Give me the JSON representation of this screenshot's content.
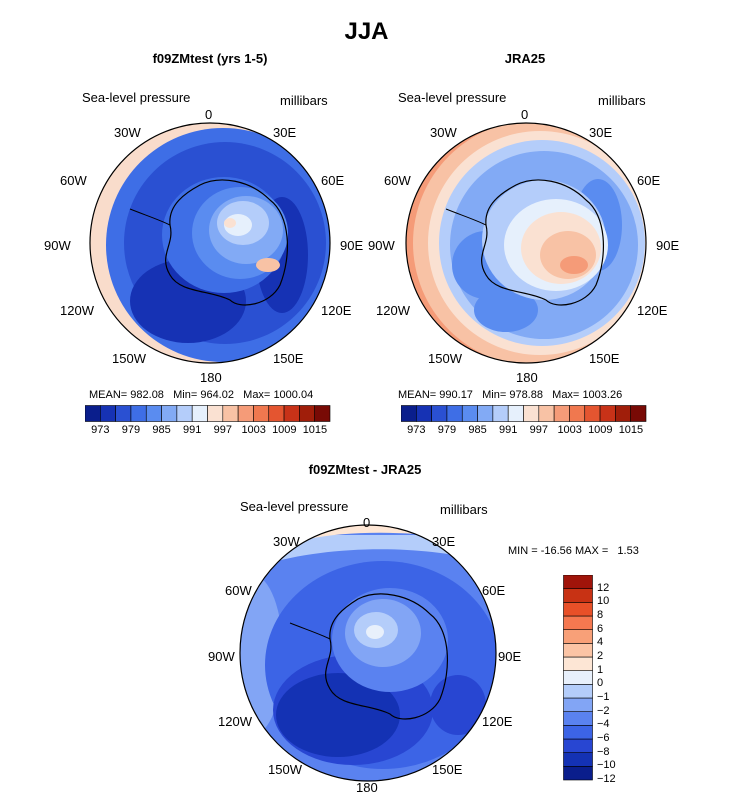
{
  "title": "JJA",
  "panels": [
    {
      "title": "f09ZMtest (yrs 1-5)",
      "field": "Sea-level pressure",
      "units": "millibars",
      "stats": {
        "mean_label": "MEAN=",
        "mean": "982.08",
        "min_label": "Min=",
        "min": "964.02",
        "max_label": "Max=",
        "max": "1000.04"
      }
    },
    {
      "title": "JRA25",
      "field": "Sea-level pressure",
      "units": "millibars",
      "stats": {
        "mean_label": "MEAN=",
        "mean": "990.17",
        "min_label": "Min=",
        "min": "978.88",
        "max_label": "Max=",
        "max": "1003.26"
      }
    },
    {
      "title": "f09ZMtest - JRA25",
      "field": "Sea-level pressure",
      "units": "millibars",
      "stats_line": "MIN = -16.56 MAX =   1.53"
    }
  ],
  "longitude_labels": [
    "0",
    "30E",
    "60E",
    "90E",
    "120E",
    "150E",
    "180",
    "150W",
    "120W",
    "90W",
    "60W",
    "30W"
  ],
  "colorbar_abs": {
    "colors": [
      "#0a1e8c",
      "#1632b4",
      "#2a50d2",
      "#3e6ee6",
      "#5a8cf0",
      "#82aaf5",
      "#b4cdfa",
      "#e6f0fc",
      "#fae1d2",
      "#f8c2a5",
      "#f59b78",
      "#f0784f",
      "#e45530",
      "#c83218",
      "#a01e0a",
      "#780a05"
    ],
    "tick_labels": [
      "973",
      "979",
      "985",
      "991",
      "997",
      "1003",
      "1009",
      "1015"
    ]
  },
  "colorbar_diff": {
    "colors": [
      "#0a1e8c",
      "#1432b4",
      "#2846d2",
      "#3c64e6",
      "#5a82f0",
      "#82a5f5",
      "#b4cdfa",
      "#e8f0fb",
      "#fde6d5",
      "#fbc4a5",
      "#f8a078",
      "#f57850",
      "#e85028",
      "#c83214",
      "#a0140a"
    ],
    "tick_labels": [
      "12",
      "10",
      "8",
      "6",
      "4",
      "2",
      "1",
      "0",
      "−1",
      "−2",
      "−4",
      "−6",
      "−8",
      "−10",
      "−12"
    ]
  },
  "chart_data": [
    {
      "type": "heatmap",
      "title": "f09ZMtest (yrs 1-5)",
      "projection": "south polar stereographic",
      "variable": "Sea-level pressure",
      "units": "millibars",
      "mean": 982.08,
      "min": 964.02,
      "max": 1000.04,
      "contour_levels": [
        973,
        976,
        979,
        982,
        985,
        988,
        991,
        994,
        997,
        1000,
        1003,
        1006,
        1009,
        1012,
        1015
      ],
      "colormap": "blue-white-red"
    },
    {
      "type": "heatmap",
      "title": "JRA25",
      "projection": "south polar stereographic",
      "variable": "Sea-level pressure",
      "units": "millibars",
      "mean": 990.17,
      "min": 978.88,
      "max": 1003.26,
      "contour_levels": [
        973,
        976,
        979,
        982,
        985,
        988,
        991,
        994,
        997,
        1000,
        1003,
        1006,
        1009,
        1012,
        1015
      ],
      "colormap": "blue-white-red"
    },
    {
      "type": "heatmap",
      "title": "f09ZMtest - JRA25",
      "projection": "south polar stereographic",
      "variable": "Sea-level pressure",
      "units": "millibars",
      "min": -16.56,
      "max": 1.53,
      "contour_levels": [
        -12,
        -10,
        -8,
        -6,
        -4,
        -2,
        -1,
        0,
        1,
        2,
        4,
        6,
        8,
        10,
        12
      ],
      "colormap": "blue-white-red"
    }
  ]
}
